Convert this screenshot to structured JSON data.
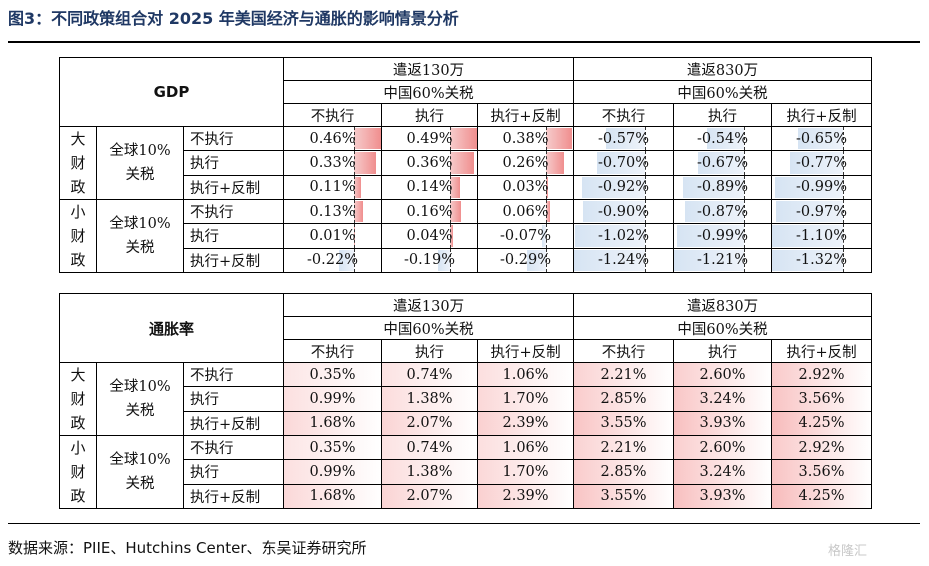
{
  "title": "图3：不同政策组合对 2025 年美国经济与通胀的影响情景分析",
  "source": "数据来源：PIIE、Hutchins Center、东吴证券研究所",
  "watermark": "格隆汇",
  "colors": {
    "positive_bar": "#f08e8e",
    "negative_bar": "#d6e4f3",
    "heat": "#f4a0a0",
    "title": "#1f3864"
  },
  "headers": {
    "deport_130": "遣返130万",
    "deport_830": "遣返830万",
    "china_tariff": "中国60%关税",
    "cols": [
      "不执行",
      "执行",
      "执行+反制",
      "不执行",
      "执行",
      "执行+反制"
    ],
    "big_country": [
      "大",
      "财",
      "政"
    ],
    "small_country": [
      "小",
      "财",
      "政"
    ],
    "global_tariff": [
      "全球10%",
      "关税"
    ],
    "rows": [
      "不执行",
      "执行",
      "执行+反制"
    ]
  },
  "chart_data": [
    {
      "type": "table",
      "title": "GDP",
      "column_groups": [
        "遣返130万",
        "遣返830万"
      ],
      "column_subgroup": "中国60%关税",
      "columns": [
        "不执行",
        "执行",
        "执行+反制",
        "不执行",
        "执行",
        "执行+反制"
      ],
      "row_groups": [
        "大财政",
        "小财政"
      ],
      "row_subgroup": "全球10%关税",
      "rows": [
        "不执行",
        "执行",
        "执行+反制"
      ],
      "values": [
        [
          0.46,
          0.49,
          0.38,
          -0.57,
          -0.54,
          -0.65
        ],
        [
          0.33,
          0.36,
          0.26,
          -0.7,
          -0.67,
          -0.77
        ],
        [
          0.11,
          0.14,
          0.03,
          -0.92,
          -0.89,
          -0.99
        ],
        [
          0.13,
          0.16,
          0.06,
          -0.9,
          -0.87,
          -0.97
        ],
        [
          0.01,
          0.04,
          -0.07,
          -1.02,
          -0.99,
          -1.1
        ],
        [
          -0.22,
          -0.19,
          -0.29,
          -1.24,
          -1.21,
          -1.32
        ]
      ],
      "labels": [
        [
          "0.46%",
          "0.49%",
          "0.38%",
          "-0.57%",
          "-0.54%",
          "-0.65%"
        ],
        [
          "0.33%",
          "0.36%",
          "0.26%",
          "-0.70%",
          "-0.67%",
          "-0.77%"
        ],
        [
          "0.11%",
          "0.14%",
          "0.03%",
          "-0.92%",
          "-0.89%",
          "-0.99%"
        ],
        [
          "0.13%",
          "0.16%",
          "0.06%",
          "-0.90%",
          "-0.87%",
          "-0.97%"
        ],
        [
          "0.01%",
          "0.04%",
          "-0.07%",
          "-1.02%",
          "-0.99%",
          "-1.10%"
        ],
        [
          "-0.22%",
          "-0.19%",
          "-0.29%",
          "-1.24%",
          "-1.21%",
          "-1.32%"
        ]
      ]
    },
    {
      "type": "table",
      "title": "通胀率",
      "column_groups": [
        "遣返130万",
        "遣返830万"
      ],
      "column_subgroup": "中国60%关税",
      "columns": [
        "不执行",
        "执行",
        "执行+反制",
        "不执行",
        "执行",
        "执行+反制"
      ],
      "row_groups": [
        "大财政",
        "小财政"
      ],
      "row_subgroup": "全球10%关税",
      "rows": [
        "不执行",
        "执行",
        "执行+反制"
      ],
      "values": [
        [
          0.35,
          0.74,
          1.06,
          2.21,
          2.6,
          2.92
        ],
        [
          0.99,
          1.38,
          1.7,
          2.85,
          3.24,
          3.56
        ],
        [
          1.68,
          2.07,
          2.39,
          3.55,
          3.93,
          4.25
        ],
        [
          0.35,
          0.74,
          1.06,
          2.21,
          2.6,
          2.92
        ],
        [
          0.99,
          1.38,
          1.7,
          2.85,
          3.24,
          3.56
        ],
        [
          1.68,
          2.07,
          2.39,
          3.55,
          3.93,
          4.25
        ]
      ],
      "labels": [
        [
          "0.35%",
          "0.74%",
          "1.06%",
          "2.21%",
          "2.60%",
          "2.92%"
        ],
        [
          "0.99%",
          "1.38%",
          "1.70%",
          "2.85%",
          "3.24%",
          "3.56%"
        ],
        [
          "1.68%",
          "2.07%",
          "2.39%",
          "3.55%",
          "3.93%",
          "4.25%"
        ],
        [
          "0.35%",
          "0.74%",
          "1.06%",
          "2.21%",
          "2.60%",
          "2.92%"
        ],
        [
          "0.99%",
          "1.38%",
          "1.70%",
          "2.85%",
          "3.24%",
          "3.56%"
        ],
        [
          "1.68%",
          "2.07%",
          "2.39%",
          "3.55%",
          "3.93%",
          "4.25%"
        ]
      ]
    }
  ]
}
